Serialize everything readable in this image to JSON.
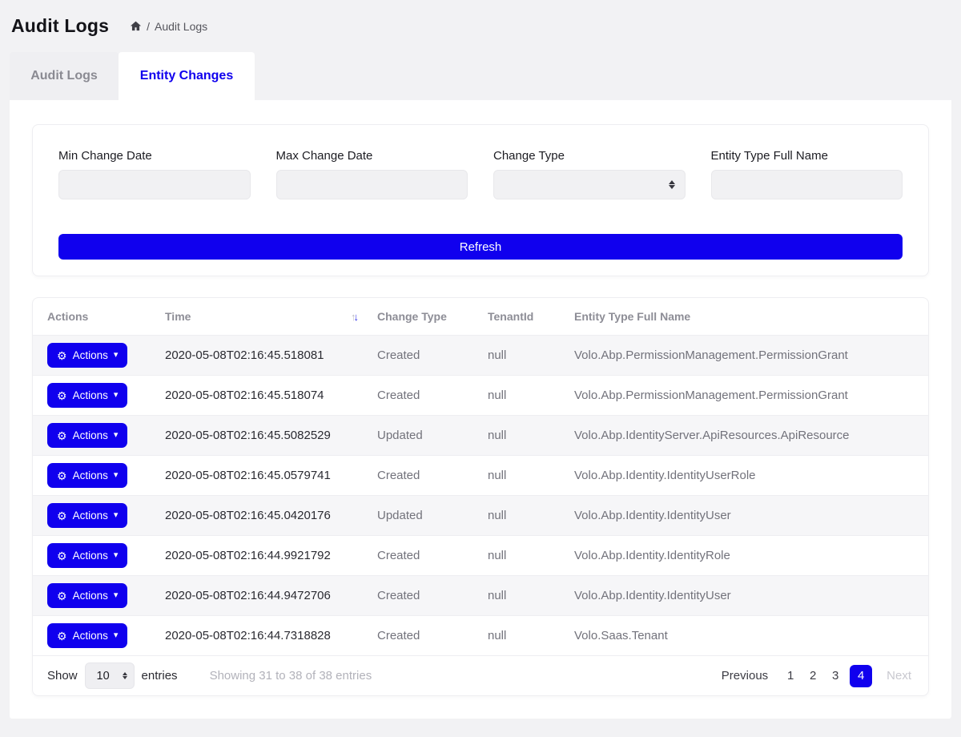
{
  "colors": {
    "primary": "#1000ee"
  },
  "icons": {
    "gear": "⚙",
    "caret_down": "▾",
    "sort_up": "↑",
    "sort_down": "↓"
  },
  "header": {
    "title": "Audit Logs",
    "breadcrumb_separator": "/",
    "breadcrumb_current": "Audit Logs"
  },
  "tabs": [
    {
      "label": "Audit Logs",
      "active": false
    },
    {
      "label": "Entity Changes",
      "active": true
    }
  ],
  "filters": {
    "min_change_date": {
      "label": "Min Change Date",
      "value": "",
      "placeholder": ""
    },
    "max_change_date": {
      "label": "Max Change Date",
      "value": "",
      "placeholder": ""
    },
    "change_type": {
      "label": "Change Type",
      "selected": ""
    },
    "entity_type_full_name": {
      "label": "Entity Type Full Name",
      "value": "",
      "placeholder": ""
    },
    "refresh_label": "Refresh"
  },
  "table": {
    "columns": {
      "actions": "Actions",
      "time": "Time",
      "change_type": "Change Type",
      "tenant_id": "TenantId",
      "entity_type_full_name": "Entity Type Full Name"
    },
    "sort": {
      "column": "Time",
      "direction": "desc"
    },
    "row_action_label": "Actions",
    "rows": [
      {
        "time": "2020-05-08T02:16:45.518081",
        "change_type": "Created",
        "tenant_id": "null",
        "entity_type_full_name": "Volo.Abp.PermissionManagement.PermissionGrant"
      },
      {
        "time": "2020-05-08T02:16:45.518074",
        "change_type": "Created",
        "tenant_id": "null",
        "entity_type_full_name": "Volo.Abp.PermissionManagement.PermissionGrant"
      },
      {
        "time": "2020-05-08T02:16:45.5082529",
        "change_type": "Updated",
        "tenant_id": "null",
        "entity_type_full_name": "Volo.Abp.IdentityServer.ApiResources.ApiResource"
      },
      {
        "time": "2020-05-08T02:16:45.0579741",
        "change_type": "Created",
        "tenant_id": "null",
        "entity_type_full_name": "Volo.Abp.Identity.IdentityUserRole"
      },
      {
        "time": "2020-05-08T02:16:45.0420176",
        "change_type": "Updated",
        "tenant_id": "null",
        "entity_type_full_name": "Volo.Abp.Identity.IdentityUser"
      },
      {
        "time": "2020-05-08T02:16:44.9921792",
        "change_type": "Created",
        "tenant_id": "null",
        "entity_type_full_name": "Volo.Abp.Identity.IdentityRole"
      },
      {
        "time": "2020-05-08T02:16:44.9472706",
        "change_type": "Created",
        "tenant_id": "null",
        "entity_type_full_name": "Volo.Abp.Identity.IdentityUser"
      },
      {
        "time": "2020-05-08T02:16:44.7318828",
        "change_type": "Created",
        "tenant_id": "null",
        "entity_type_full_name": "Volo.Saas.Tenant"
      }
    ],
    "footer": {
      "show_label": "Show",
      "page_size": "10",
      "entries_label": "entries",
      "info": "Showing 31 to 38 of 38 entries",
      "pagination": {
        "previous_label": "Previous",
        "pages": [
          "1",
          "2",
          "3",
          "4"
        ],
        "active_page": "4",
        "next_label": "Next",
        "next_disabled": true
      }
    }
  }
}
